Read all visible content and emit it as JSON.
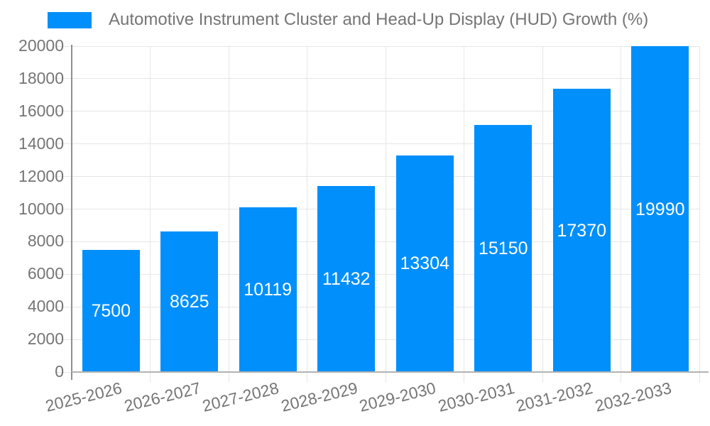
{
  "legend": {
    "position": "top-left",
    "label": "Automotive Instrument Cluster and Head-Up Display (HUD) Growth (%)"
  },
  "colors": {
    "bar": "#008ffb",
    "grid": "#e6e6e6",
    "y_axis_line": "#8f8f8f",
    "baseline": "#b3b3b3",
    "tick_text": "#757575",
    "value_label_text": "#ffffff",
    "background": "#ffffff"
  },
  "chart_data": {
    "type": "bar",
    "title": "Automotive Instrument Cluster and Head-Up Display (HUD) Growth (%)",
    "categories": [
      "2025-2026",
      "2026-2027",
      "2027-2028",
      "2028-2029",
      "2029-2030",
      "2030-2031",
      "2031-2032",
      "2032-2033"
    ],
    "values": [
      7500,
      8625,
      10119,
      11432,
      13304,
      15150,
      17370,
      19990
    ],
    "xlabel": "",
    "ylabel": "",
    "ylim": [
      0,
      20000
    ],
    "ytick_step": 2000,
    "yticks": [
      0,
      2000,
      4000,
      6000,
      8000,
      10000,
      12000,
      14000,
      16000,
      18000,
      20000
    ],
    "grid": true,
    "legend_position": "top-left",
    "value_labels": "inside-middle",
    "x_label_rotation_deg": -14
  }
}
